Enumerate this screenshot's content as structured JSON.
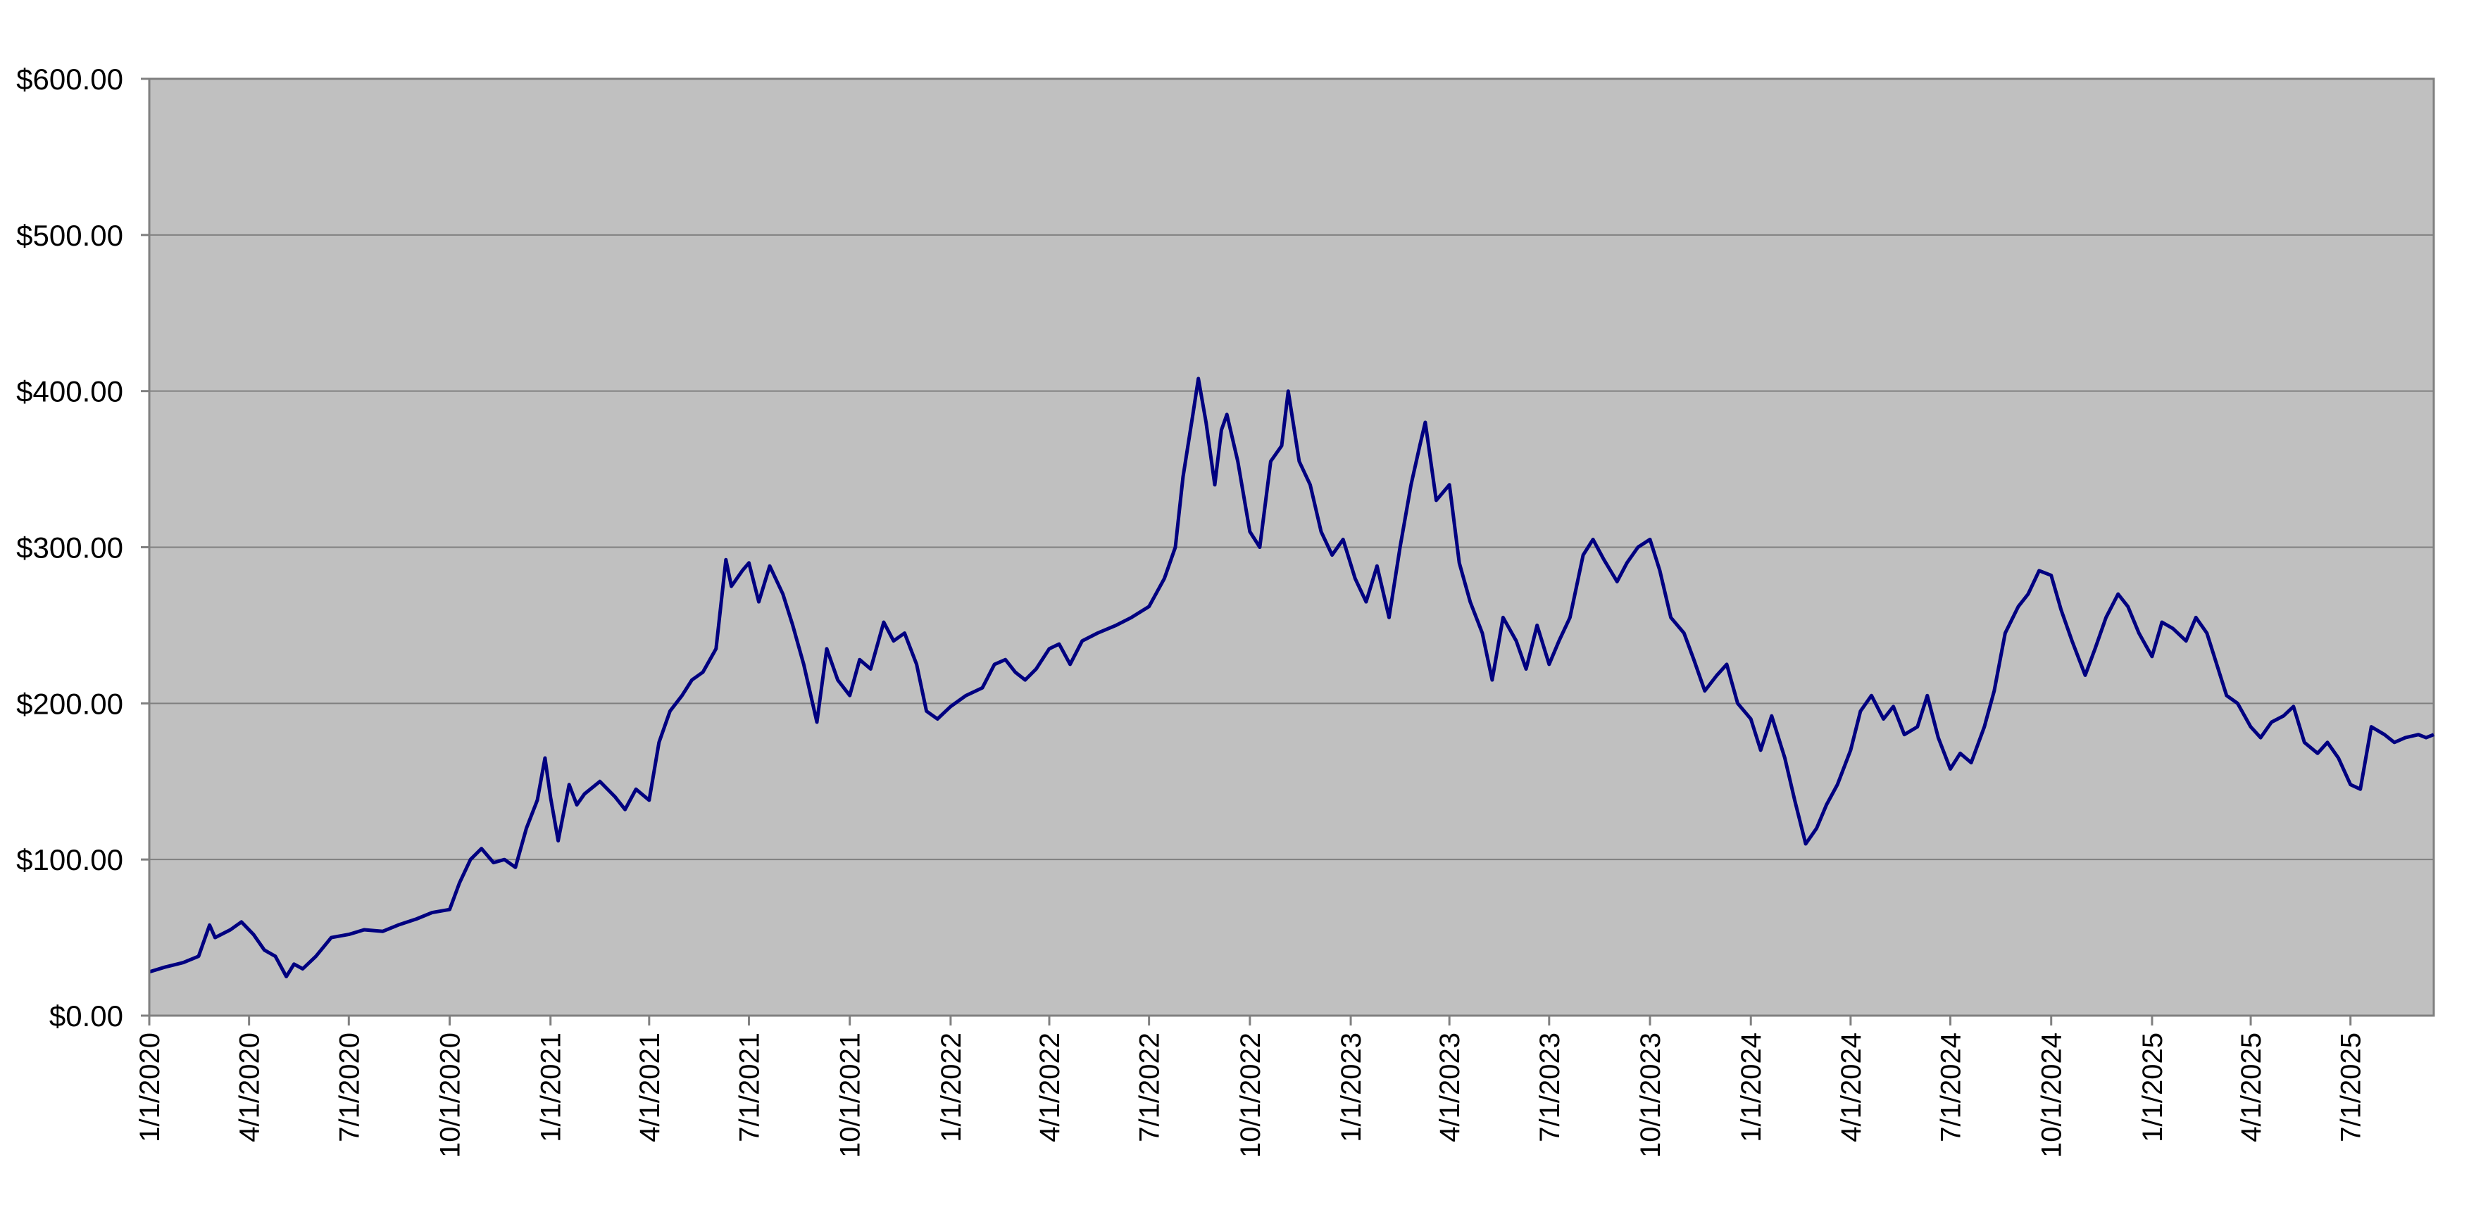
{
  "colors": {
    "plot_background": "#c0c0c0",
    "gridline": "#808080",
    "axis": "#808080",
    "series_line": "#000080",
    "page_background": "#ffffff"
  },
  "chart_data": {
    "type": "line",
    "title": "",
    "xlabel": "",
    "ylabel": "",
    "grid": true,
    "legend": "none",
    "x_axis": {
      "type": "date",
      "range": [
        "1/1/2020",
        "9/15/2025"
      ],
      "tick_labels": [
        "1/1/2020",
        "4/1/2020",
        "7/1/2020",
        "10/1/2020",
        "1/1/2021",
        "4/1/2021",
        "7/1/2021",
        "10/1/2021",
        "1/1/2022",
        "4/1/2022",
        "7/1/2022",
        "10/1/2022",
        "1/1/2023",
        "4/1/2023",
        "7/1/2023",
        "10/1/2023",
        "1/1/2024",
        "4/1/2024",
        "7/1/2024",
        "10/1/2024",
        "1/1/2025",
        "4/1/2025",
        "7/1/2025"
      ],
      "label_rotation": "vertical"
    },
    "y_axis": {
      "range": [
        0,
        600
      ],
      "ticks": [
        0,
        100,
        200,
        300,
        400,
        500,
        600
      ],
      "tick_labels": [
        "$0.00",
        "$100.00",
        "$200.00",
        "$300.00",
        "$400.00",
        "$500.00",
        "$600.00"
      ]
    },
    "series": [
      {
        "points": [
          [
            "1/1/2020",
            28
          ],
          [
            "1/15/2020",
            31
          ],
          [
            "2/1/2020",
            34
          ],
          [
            "2/15/2020",
            38
          ],
          [
            "2/25/2020",
            58
          ],
          [
            "3/1/2020",
            50
          ],
          [
            "3/15/2020",
            55
          ],
          [
            "3/25/2020",
            60
          ],
          [
            "4/5/2020",
            52
          ],
          [
            "4/15/2020",
            42
          ],
          [
            "4/25/2020",
            38
          ],
          [
            "5/5/2020",
            25
          ],
          [
            "5/12/2020",
            33
          ],
          [
            "5/20/2020",
            30
          ],
          [
            "6/1/2020",
            38
          ],
          [
            "6/15/2020",
            50
          ],
          [
            "7/1/2020",
            52
          ],
          [
            "7/15/2020",
            55
          ],
          [
            "8/1/2020",
            54
          ],
          [
            "8/15/2020",
            58
          ],
          [
            "9/1/2020",
            62
          ],
          [
            "9/15/2020",
            66
          ],
          [
            "10/1/2020",
            68
          ],
          [
            "10/10/2020",
            85
          ],
          [
            "10/20/2020",
            100
          ],
          [
            "10/30/2020",
            107
          ],
          [
            "11/10/2020",
            98
          ],
          [
            "11/20/2020",
            100
          ],
          [
            "11/30/2020",
            95
          ],
          [
            "12/10/2020",
            120
          ],
          [
            "12/20/2020",
            138
          ],
          [
            "12/27/2020",
            165
          ],
          [
            "1/1/2021",
            140
          ],
          [
            "1/8/2021",
            112
          ],
          [
            "1/18/2021",
            148
          ],
          [
            "1/25/2021",
            135
          ],
          [
            "2/1/2021",
            142
          ],
          [
            "2/15/2021",
            150
          ],
          [
            "3/1/2021",
            140
          ],
          [
            "3/10/2021",
            132
          ],
          [
            "3/20/2021",
            145
          ],
          [
            "4/1/2021",
            138
          ],
          [
            "4/10/2021",
            175
          ],
          [
            "4/20/2021",
            195
          ],
          [
            "5/1/2021",
            205
          ],
          [
            "5/10/2021",
            215
          ],
          [
            "5/20/2021",
            220
          ],
          [
            "6/1/2021",
            235
          ],
          [
            "6/10/2021",
            292
          ],
          [
            "6/15/2021",
            275
          ],
          [
            "6/25/2021",
            285
          ],
          [
            "7/1/2021",
            290
          ],
          [
            "7/10/2021",
            265
          ],
          [
            "7/20/2021",
            288
          ],
          [
            "8/1/2021",
            270
          ],
          [
            "8/10/2021",
            250
          ],
          [
            "8/20/2021",
            225
          ],
          [
            "9/1/2021",
            188
          ],
          [
            "9/10/2021",
            235
          ],
          [
            "9/20/2021",
            215
          ],
          [
            "10/1/2021",
            205
          ],
          [
            "10/10/2021",
            228
          ],
          [
            "10/20/2021",
            222
          ],
          [
            "11/1/2021",
            252
          ],
          [
            "11/10/2021",
            240
          ],
          [
            "11/20/2021",
            245
          ],
          [
            "12/1/2021",
            225
          ],
          [
            "12/10/2021",
            195
          ],
          [
            "12/20/2021",
            190
          ],
          [
            "1/1/2022",
            198
          ],
          [
            "1/15/2022",
            205
          ],
          [
            "1/30/2022",
            210
          ],
          [
            "2/10/2022",
            225
          ],
          [
            "2/20/2022",
            228
          ],
          [
            "3/1/2022",
            220
          ],
          [
            "3/10/2022",
            215
          ],
          [
            "3/20/2022",
            222
          ],
          [
            "4/1/2022",
            235
          ],
          [
            "4/10/2022",
            238
          ],
          [
            "4/20/2022",
            225
          ],
          [
            "5/1/2022",
            240
          ],
          [
            "5/15/2022",
            245
          ],
          [
            "6/1/2022",
            250
          ],
          [
            "6/15/2022",
            255
          ],
          [
            "7/1/2022",
            262
          ],
          [
            "7/15/2022",
            280
          ],
          [
            "7/25/2022",
            300
          ],
          [
            "8/1/2022",
            345
          ],
          [
            "8/10/2022",
            385
          ],
          [
            "8/15/2022",
            408
          ],
          [
            "8/22/2022",
            380
          ],
          [
            "8/30/2022",
            340
          ],
          [
            "9/5/2022",
            375
          ],
          [
            "9/10/2022",
            385
          ],
          [
            "9/20/2022",
            355
          ],
          [
            "10/1/2022",
            310
          ],
          [
            "10/10/2022",
            300
          ],
          [
            "10/20/2022",
            355
          ],
          [
            "10/30/2022",
            365
          ],
          [
            "11/5/2022",
            400
          ],
          [
            "11/15/2022",
            355
          ],
          [
            "11/25/2022",
            340
          ],
          [
            "12/5/2022",
            310
          ],
          [
            "12/15/2022",
            295
          ],
          [
            "12/25/2022",
            305
          ],
          [
            "1/5/2023",
            280
          ],
          [
            "1/15/2023",
            265
          ],
          [
            "1/25/2023",
            288
          ],
          [
            "2/5/2023",
            255
          ],
          [
            "2/15/2023",
            300
          ],
          [
            "2/25/2023",
            340
          ],
          [
            "3/5/2023",
            365
          ],
          [
            "3/10/2023",
            380
          ],
          [
            "3/20/2023",
            330
          ],
          [
            "4/1/2023",
            340
          ],
          [
            "4/10/2023",
            290
          ],
          [
            "4/20/2023",
            265
          ],
          [
            "5/1/2023",
            245
          ],
          [
            "5/10/2023",
            215
          ],
          [
            "5/20/2023",
            255
          ],
          [
            "6/1/2023",
            240
          ],
          [
            "6/10/2023",
            222
          ],
          [
            "6/20/2023",
            250
          ],
          [
            "7/1/2023",
            225
          ],
          [
            "7/10/2023",
            240
          ],
          [
            "7/20/2023",
            255
          ],
          [
            "8/1/2023",
            295
          ],
          [
            "8/10/2023",
            305
          ],
          [
            "8/20/2023",
            292
          ],
          [
            "9/1/2023",
            278
          ],
          [
            "9/10/2023",
            290
          ],
          [
            "9/20/2023",
            300
          ],
          [
            "10/1/2023",
            305
          ],
          [
            "10/10/2023",
            285
          ],
          [
            "10/20/2023",
            255
          ],
          [
            "11/1/2023",
            245
          ],
          [
            "11/10/2023",
            228
          ],
          [
            "11/20/2023",
            208
          ],
          [
            "12/1/2023",
            218
          ],
          [
            "12/10/2023",
            225
          ],
          [
            "12/20/2023",
            200
          ],
          [
            "1/1/2024",
            190
          ],
          [
            "1/10/2024",
            170
          ],
          [
            "1/20/2024",
            192
          ],
          [
            "2/1/2024",
            165
          ],
          [
            "2/10/2024",
            138
          ],
          [
            "2/20/2024",
            110
          ],
          [
            "3/1/2024",
            120
          ],
          [
            "3/10/2024",
            135
          ],
          [
            "3/20/2024",
            148
          ],
          [
            "4/1/2024",
            170
          ],
          [
            "4/10/2024",
            195
          ],
          [
            "4/20/2024",
            205
          ],
          [
            "5/1/2024",
            190
          ],
          [
            "5/10/2024",
            198
          ],
          [
            "5/20/2024",
            180
          ],
          [
            "6/1/2024",
            185
          ],
          [
            "6/10/2024",
            205
          ],
          [
            "6/20/2024",
            178
          ],
          [
            "7/1/2024",
            158
          ],
          [
            "7/10/2024",
            168
          ],
          [
            "7/20/2024",
            162
          ],
          [
            "8/1/2024",
            185
          ],
          [
            "8/10/2024",
            208
          ],
          [
            "8/20/2024",
            245
          ],
          [
            "9/1/2024",
            262
          ],
          [
            "9/10/2024",
            270
          ],
          [
            "9/20/2024",
            285
          ],
          [
            "10/1/2024",
            282
          ],
          [
            "10/10/2024",
            260
          ],
          [
            "10/20/2024",
            240
          ],
          [
            "11/1/2024",
            218
          ],
          [
            "11/10/2024",
            235
          ],
          [
            "11/20/2024",
            255
          ],
          [
            "12/1/2024",
            270
          ],
          [
            "12/10/2024",
            262
          ],
          [
            "12/20/2024",
            245
          ],
          [
            "1/1/2025",
            230
          ],
          [
            "1/10/2025",
            252
          ],
          [
            "1/20/2025",
            248
          ],
          [
            "2/1/2025",
            240
          ],
          [
            "2/10/2025",
            255
          ],
          [
            "2/20/2025",
            245
          ],
          [
            "3/1/2025",
            225
          ],
          [
            "3/10/2025",
            205
          ],
          [
            "3/20/2025",
            200
          ],
          [
            "4/1/2025",
            185
          ],
          [
            "4/10/2025",
            178
          ],
          [
            "4/20/2025",
            188
          ],
          [
            "5/1/2025",
            192
          ],
          [
            "5/10/2025",
            198
          ],
          [
            "5/20/2025",
            175
          ],
          [
            "6/1/2025",
            168
          ],
          [
            "6/10/2025",
            175
          ],
          [
            "6/20/2025",
            165
          ],
          [
            "7/1/2025",
            148
          ],
          [
            "7/10/2025",
            145
          ],
          [
            "7/20/2025",
            185
          ],
          [
            "8/1/2025",
            180
          ],
          [
            "8/10/2025",
            175
          ],
          [
            "8/20/2025",
            178
          ],
          [
            "9/1/2025",
            180
          ],
          [
            "9/8/2025",
            178
          ],
          [
            "9/15/2025",
            180
          ]
        ]
      }
    ]
  }
}
